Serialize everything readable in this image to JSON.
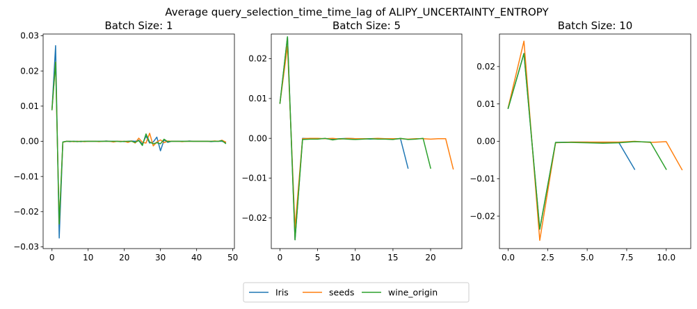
{
  "figure_title": "Average query_selection_time_time_lag of ALIPY_UNCERTAINTY_ENTROPY",
  "colors": {
    "Iris": "#1f77b4",
    "seeds": "#ff7f0e",
    "wine_origin": "#2ca02c"
  },
  "legend": {
    "placement": "bottom-center",
    "entries": [
      "Iris",
      "seeds",
      "wine_origin"
    ]
  },
  "chart_data": [
    {
      "type": "line",
      "title": "Batch Size: 1",
      "xlim": [
        -2.45,
        50.45
      ],
      "ylim": [
        -0.0305,
        0.0305
      ],
      "xticks": [
        0,
        10,
        20,
        30,
        40,
        50
      ],
      "xtick_labels": [
        "0",
        "10",
        "20",
        "30",
        "40",
        "50"
      ],
      "yticks": [
        -0.03,
        -0.02,
        -0.01,
        0.0,
        0.01,
        0.02,
        0.03
      ],
      "ytick_labels": [
        "−0.03",
        "−0.02",
        "−0.01",
        "0.00",
        "0.01",
        "0.02",
        "0.03"
      ],
      "series": [
        {
          "name": "Iris",
          "x": [
            0,
            1,
            2,
            3,
            4,
            5,
            6,
            7,
            8,
            9,
            10,
            11,
            12,
            13,
            14,
            15,
            16,
            17,
            18,
            19,
            20,
            21,
            22,
            23,
            24,
            25,
            26,
            27,
            28,
            29,
            30,
            31,
            32,
            33,
            34,
            35,
            36,
            37,
            38,
            39,
            40,
            41,
            42,
            43,
            44,
            45,
            46,
            47,
            48
          ],
          "y": [
            0.009,
            0.0272,
            -0.0275,
            -0.0002,
            0,
            -0.0001,
            0,
            0,
            -0.0001,
            0,
            0,
            0,
            0,
            0,
            0,
            0.0001,
            0,
            0,
            0,
            0,
            -0.0001,
            0,
            0.0001,
            0,
            0.0003,
            -0.0008,
            0.0015,
            -0.0005,
            -0.0002,
            0.0012,
            -0.0027,
            0.0004,
            -0.0003,
            0,
            0,
            0,
            0,
            0,
            0.0001,
            0,
            0,
            0,
            0,
            0,
            -0.0001,
            0,
            0,
            0,
            -0.0003
          ]
        },
        {
          "name": "seeds",
          "x": [
            0,
            1,
            2,
            3,
            4,
            5,
            6,
            7,
            8,
            9,
            10,
            11,
            12,
            13,
            14,
            15,
            16,
            17,
            18,
            19,
            20,
            21,
            22,
            23,
            24,
            25,
            26,
            27,
            28,
            29,
            30,
            31,
            32,
            33,
            34,
            35,
            36,
            37,
            38,
            39,
            40,
            41,
            42,
            43,
            44,
            45,
            46,
            47,
            48
          ],
          "y": [
            0.009,
            0.0225,
            -0.0235,
            -0.0003,
            0,
            0,
            -0.0001,
            0,
            0,
            -0.0001,
            0,
            0,
            0,
            -0.0001,
            0,
            0,
            0,
            -0.0002,
            0,
            0,
            0,
            -0.0003,
            0.0001,
            -0.0005,
            0.0009,
            -0.0003,
            -0.0005,
            0.0023,
            -0.0013,
            -0.0002,
            0.0004,
            -0.0004,
            0.0001,
            0,
            0,
            0,
            -0.0001,
            0,
            0,
            0,
            0,
            0,
            0,
            0,
            0,
            0.0001,
            0,
            0.0003,
            -0.0002
          ]
        },
        {
          "name": "wine_origin",
          "x": [
            0,
            1,
            2,
            3,
            4,
            5,
            6,
            7,
            8,
            9,
            10,
            11,
            12,
            13,
            14,
            15,
            16,
            17,
            18,
            19,
            20,
            21,
            22,
            23,
            24,
            25,
            26,
            27,
            28,
            29,
            30,
            31,
            32,
            33,
            34,
            35,
            36,
            37,
            38,
            39,
            40,
            41,
            42,
            43,
            44,
            45,
            46,
            47,
            48
          ],
          "y": [
            0.009,
            0.0225,
            -0.0235,
            -0.0002,
            0,
            0,
            0,
            -0.0001,
            0,
            0,
            0,
            0,
            0,
            0,
            0,
            0,
            0,
            0,
            0,
            -0.0001,
            0,
            0,
            0,
            -0.0003,
            0.0002,
            -0.0012,
            0.0021,
            -0.0002,
            -0.0007,
            -0.0004,
            -0.0007,
            0.0006,
            -0.0001,
            0,
            0,
            0,
            0,
            0,
            0,
            0,
            0,
            0,
            0,
            0,
            0,
            0,
            0,
            0.0002,
            -0.0006
          ]
        }
      ]
    },
    {
      "type": "line",
      "title": "Batch Size: 5",
      "xlim": [
        -1.15,
        24.15
      ],
      "ylim": [
        -0.0277,
        0.0262
      ],
      "xticks": [
        0,
        5,
        10,
        15,
        20
      ],
      "xtick_labels": [
        "0",
        "5",
        "10",
        "15",
        "20"
      ],
      "yticks": [
        -0.02,
        -0.01,
        0.0,
        0.01,
        0.02
      ],
      "ytick_labels": [
        "−0.02",
        "−0.01",
        "0.00",
        "0.01",
        "0.02"
      ],
      "series": [
        {
          "name": "Iris",
          "x": [
            0,
            1,
            2,
            3,
            4,
            5,
            6,
            7,
            8,
            9,
            10,
            11,
            12,
            13,
            14,
            15,
            16,
            17
          ],
          "y": [
            0.0088,
            0.0255,
            -0.0255,
            0,
            -0.0001,
            -0.0001,
            -0.0001,
            -0.0002,
            -0.0001,
            0,
            -0.0001,
            -0.0001,
            -0.0002,
            -0.0001,
            -0.0001,
            -0.0002,
            -0.0001,
            -0.0075
          ]
        },
        {
          "name": "seeds",
          "x": [
            0,
            1,
            2,
            3,
            4,
            5,
            6,
            7,
            8,
            9,
            10,
            11,
            12,
            13,
            14,
            15,
            16,
            17,
            18,
            19,
            20,
            21,
            22,
            23
          ],
          "y": [
            0.0088,
            0.0232,
            -0.0225,
            -0.0001,
            0,
            0,
            -0.0001,
            0,
            -0.0002,
            0,
            -0.0001,
            -0.0001,
            -0.0001,
            0,
            -0.0001,
            -0.0001,
            -0.0001,
            -0.0002,
            -0.0001,
            -0.0001,
            -0.0002,
            -0.0001,
            -0.0001,
            -0.0077
          ]
        },
        {
          "name": "wine_origin",
          "x": [
            0,
            1,
            2,
            3,
            4,
            5,
            6,
            7,
            8,
            9,
            10,
            11,
            12,
            13,
            14,
            15,
            16,
            17,
            18,
            19,
            20
          ],
          "y": [
            0.0088,
            0.0255,
            -0.0255,
            -0.0003,
            -0.0002,
            -0.0002,
            0,
            -0.0004,
            -0.0001,
            -0.0002,
            -0.0003,
            -0.0002,
            -0.0001,
            -0.0002,
            -0.0002,
            -0.0003,
            0,
            -0.0003,
            -0.0002,
            0,
            -0.0075
          ]
        }
      ]
    },
    {
      "type": "line",
      "title": "Batch Size: 10",
      "xlim": [
        -0.55,
        11.55
      ],
      "ylim": [
        -0.0287,
        0.0287
      ],
      "xticks": [
        0,
        2.5,
        5,
        7.5,
        10
      ],
      "xtick_labels": [
        "0.0",
        "2.5",
        "5.0",
        "7.5",
        "10.0"
      ],
      "yticks": [
        -0.02,
        -0.01,
        0.0,
        0.01,
        0.02
      ],
      "ytick_labels": [
        "−0.02",
        "−0.01",
        "0.00",
        "0.01",
        "0.02"
      ],
      "series": [
        {
          "name": "Iris",
          "x": [
            0,
            1,
            2,
            3,
            4,
            5,
            6,
            7,
            8
          ],
          "y": [
            0.0088,
            0.0235,
            -0.0235,
            -0.0003,
            -0.0002,
            -0.0002,
            -0.0003,
            -0.0003,
            -0.0075
          ]
        },
        {
          "name": "seeds",
          "x": [
            0,
            1,
            2,
            3,
            4,
            5,
            6,
            7,
            8,
            9,
            10,
            11
          ],
          "y": [
            0.009,
            0.0268,
            -0.0265,
            -0.0004,
            -0.0002,
            -0.0002,
            -0.0002,
            -0.0002,
            0,
            -0.0003,
            -0.0001,
            -0.0076
          ]
        },
        {
          "name": "wine_origin",
          "x": [
            0,
            1,
            2,
            3,
            4,
            5,
            6,
            7,
            8,
            9,
            10
          ],
          "y": [
            0.0088,
            0.0235,
            -0.0235,
            -0.0003,
            -0.0003,
            -0.0004,
            -0.0005,
            -0.0004,
            -0.0001,
            -0.0002,
            -0.0075
          ]
        }
      ]
    }
  ]
}
